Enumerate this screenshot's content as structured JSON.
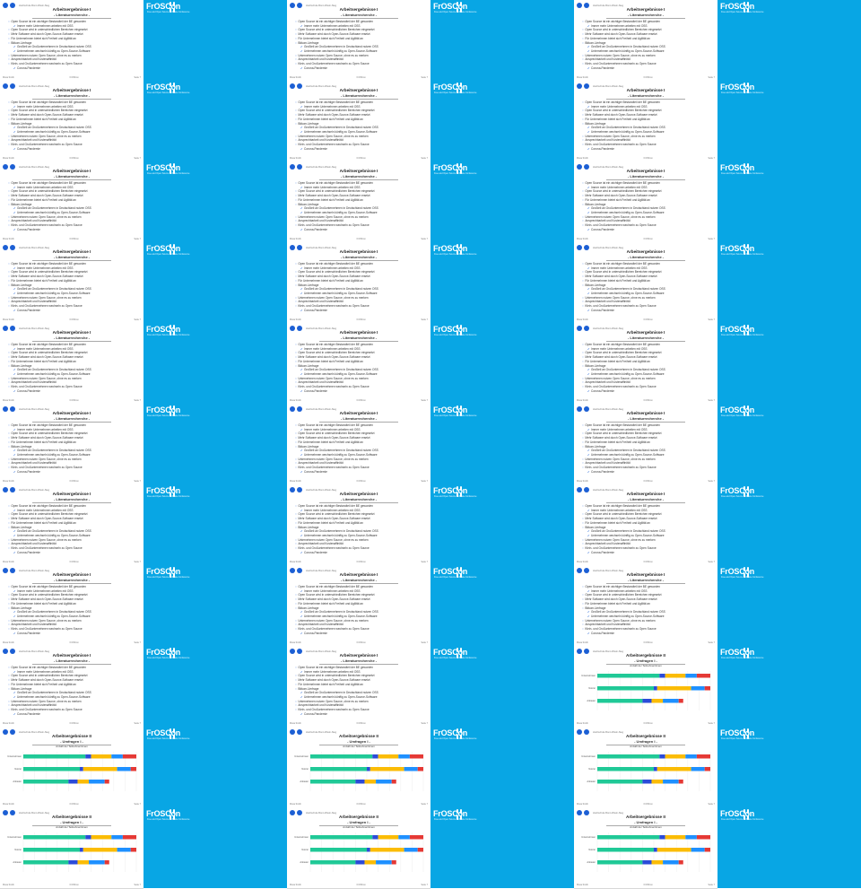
{
  "columns": 6,
  "brand": {
    "logo_text": "FrOSCon",
    "logo_sub": "Free and Open Source Software Conference",
    "color": "#08a6e4"
  },
  "slide_types": {
    "literatur": {
      "title": "Arbeitsergebnisse I",
      "subtitle": "- Literaturrecherche -",
      "bullets": [
        {
          "text": "Open Source ist ein wichtiger Bestandteil der BE geworden",
          "level": 0
        },
        {
          "text": "Immer mehr Unternehmen arbeiten mit OSS",
          "level": 1
        },
        {
          "text": "Open Source wird in unterschiedlichen Bereichen eingesetzt",
          "level": 0
        },
        {
          "text": "Mehr Software wird durch Open-Source-Software ersetzt",
          "level": 0
        },
        {
          "text": "Für Unternehmen bietet sich Freiheit und Agilität an",
          "level": 0
        },
        {
          "text": "Bitkom-Umfrage",
          "level": 0
        },
        {
          "text": "Großteil an Großunternehmen in Deutschland nutzen OSS",
          "level": 1
        },
        {
          "text": "Unternehmen wechseln künftig zu Open-Source-Software",
          "level": 1
        },
        {
          "text": "Unternehmen nutzen Open Source, ohne es zu merken",
          "level": 0
        },
        {
          "text": "Ansprechbarkeit und Kostenaffinität",
          "level": 0
        },
        {
          "text": "Klein- und Großunternehmen wechseln zu Open Source",
          "level": 0
        },
        {
          "text": "Corona-Pandemie",
          "level": 1
        }
      ]
    },
    "umfrage_bar": {
      "title": "Arbeitsergebnisse II",
      "subtitle": "- Umfragen I -"
    },
    "umfrage_pie": {
      "title": "Arbeitsergebnisse II",
      "subtitle": "- Umfragen I -"
    },
    "umfrage_pie2": {
      "title": "Arbeitsergebnisse II",
      "subtitle": "- Umfragen II -"
    }
  },
  "footer": {
    "left": "Mona Smith",
    "center": "FrOSCon",
    "right": "Seite 7"
  },
  "header_text": "Hochschule Bonn-Rhein-Sieg",
  "bar_chart": {
    "type": "bar",
    "orientation": "horizontal-stacked",
    "title": "Anzahl der Teilnehmer/innen",
    "categories": [
      "Unternehmen",
      "Nutzer",
      "Anbieter"
    ],
    "series": [
      {
        "values": [
          55,
          50,
          40
        ],
        "color": "#20c997"
      },
      {
        "values": [
          5,
          3,
          8
        ],
        "color": "#2b4bd9"
      },
      {
        "values": [
          18,
          30,
          10
        ],
        "color": "#fbbc05"
      },
      {
        "values": [
          10,
          12,
          14
        ],
        "color": "#1e90ff"
      },
      {
        "values": [
          12,
          5,
          4
        ],
        "color": "#e53935"
      }
    ],
    "xlim": [
      0,
      100
    ]
  },
  "pie_chart": {
    "type": "pie",
    "title": "Firmenstruktur",
    "values": [
      80,
      20
    ],
    "colors": [
      "#2727c8",
      "#20c997"
    ]
  },
  "pie_chart_2": {
    "type": "pie",
    "title": "Wie viele Mitarbeiter sind in Ihrem Unternehmen tätig?",
    "values": [
      62,
      28,
      10
    ],
    "colors": [
      "#fbbc05",
      "#1e90ff",
      "#20c997"
    ]
  },
  "sequence": [
    "literatur",
    "literatur",
    "literatur",
    "literatur",
    "literatur",
    "literatur",
    "literatur",
    "literatur",
    "literatur",
    "literatur",
    "literatur",
    "literatur",
    "literatur",
    "literatur",
    "literatur",
    "literatur",
    "literatur",
    "literatur",
    "literatur",
    "literatur",
    "literatur",
    "literatur",
    "literatur",
    "literatur",
    "literatur",
    "literatur",
    "umfrage_bar",
    "umfrage_bar",
    "umfrage_bar",
    "umfrage_bar",
    "umfrage_bar",
    "umfrage_bar",
    "umfrage_bar",
    "umfrage_bar",
    "umfrage_bar",
    "umfrage_bar",
    "umfrage_bar",
    "umfrage_bar",
    "umfrage_bar",
    "umfrage_bar",
    "umfrage_bar",
    "umfrage_bar",
    "umfrage_bar",
    "umfrage_bar",
    "umfrage_bar",
    "umfrage_bar",
    "umfrage_bar",
    "umfrage_bar",
    "umfrage_bar",
    "umfrage_bar",
    "umfrage_bar",
    "umfrage_bar",
    "umfrage_bar",
    "umfrage_pie",
    "umfrage_pie",
    "umfrage_pie",
    "umfrage_pie",
    "umfrage_pie",
    "umfrage_pie",
    "umfrage_pie",
    "umfrage_pie",
    "umfrage_pie",
    "umfrage_pie",
    "umfrage_pie2",
    "umfrage_pie2"
  ]
}
